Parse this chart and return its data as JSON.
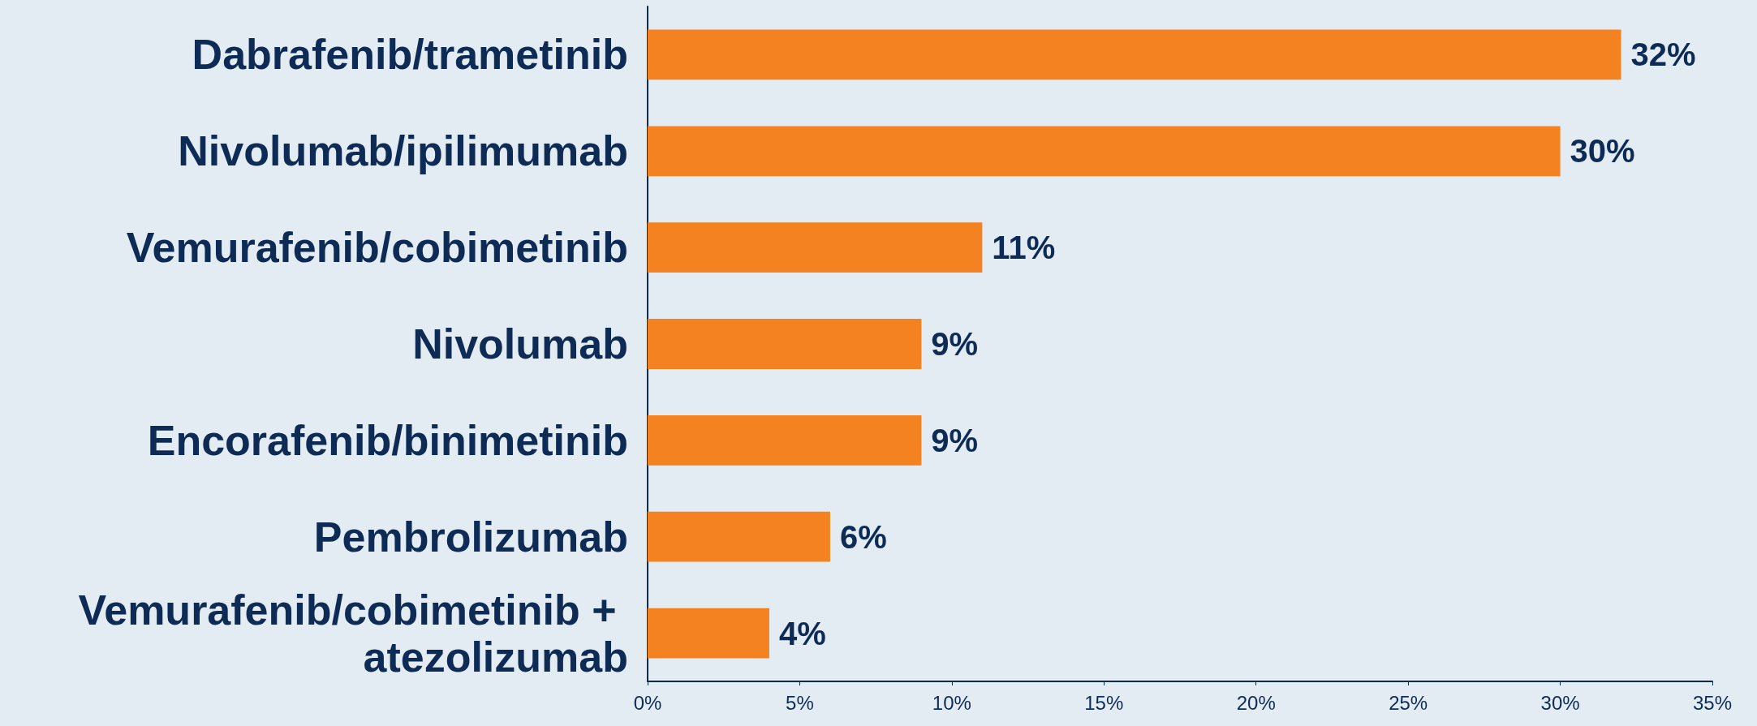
{
  "chart_data": {
    "type": "bar",
    "orientation": "horizontal",
    "categories": [
      "Dabrafenib/trametinib",
      "Nivolumab/ipilimumab",
      "Vemurafenib/cobimetinib",
      "Nivolumab",
      "Encorafenib/binimetinib",
      "Pembrolizumab",
      "Vemurafenib/cobimetinib + atezolizumab"
    ],
    "values": [
      32,
      30,
      11,
      9,
      9,
      6,
      4
    ],
    "value_labels": [
      "32%",
      "30%",
      "11%",
      "9%",
      "9%",
      "6%",
      "4%"
    ],
    "color": "#f58220",
    "xlim": [
      0,
      35
    ],
    "xticks": [
      {
        "value": 0,
        "label": "0%"
      },
      {
        "value": 5,
        "label": "5%"
      },
      {
        "value": 10,
        "label": "10%"
      },
      {
        "value": 15,
        "label": "15%"
      },
      {
        "value": 20,
        "label": "20%"
      },
      {
        "value": 25,
        "label": "25%"
      },
      {
        "value": 30,
        "label": "30%"
      },
      {
        "value": 35,
        "label": "35%"
      }
    ],
    "grid": false
  }
}
